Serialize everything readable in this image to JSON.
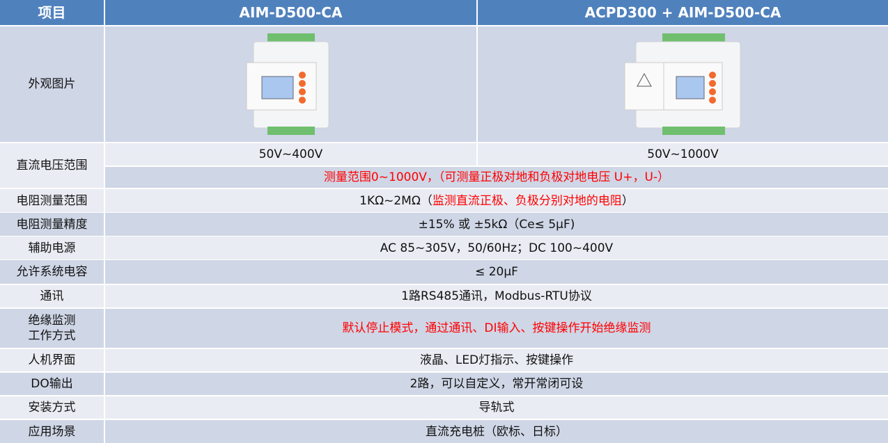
{
  "header": {
    "col0": "项目",
    "col1": "AIM-D500-CA",
    "col2": "ACPD300 + AIM-D500-CA"
  },
  "rows": {
    "appearance": {
      "label": "外观图片",
      "img1": "AIM-D500-CA device photo",
      "img2": "ACPD300 + AIM-D500-CA device photo"
    },
    "dc_voltage": {
      "label": "直流电压范围",
      "v1": "50V~400V",
      "v2": "50V~1000V",
      "note": "测量范围0~1000V，（可测量正极对地和负极对地电压 U+，U-）"
    },
    "res_range": {
      "label": "电阻测量范围",
      "value": "1KΩ~2MΩ（",
      "value_red": "监测直流正极、负极分别对地的电阻",
      "value_end": "）"
    },
    "res_acc": {
      "label": "电阻测量精度",
      "value": "±15% 或 ±5kΩ（Ce≤ 5μF)"
    },
    "aux_power": {
      "label": "辅助电源",
      "value": "AC 85~305V，50/60Hz；DC 100~400V"
    },
    "capacitance": {
      "label": "允许系统电容",
      "value": "≤ 20μF"
    },
    "comm": {
      "label": "通讯",
      "value": "1路RS485通讯，Modbus-RTU协议"
    },
    "mode": {
      "label1": "绝缘监测",
      "label2": "工作方式",
      "value": "默认停止模式，通过通讯、DI输入、按键操作开始绝缘监测"
    },
    "hmi": {
      "label": "人机界面",
      "value": "液晶、LED灯指示、按键操作"
    },
    "do": {
      "label": "DO输出",
      "value": "2路，可以自定义，常开常闭可设"
    },
    "install": {
      "label": "安装方式",
      "value": "导轨式"
    },
    "app": {
      "label": "应用场景",
      "value": "直流充电桩（欧标、日标）"
    }
  },
  "colors": {
    "header": "#4f81bd",
    "row_dark": "#cfd6e6",
    "row_light": "#e9ecf3",
    "highlight": "#ff0000"
  }
}
